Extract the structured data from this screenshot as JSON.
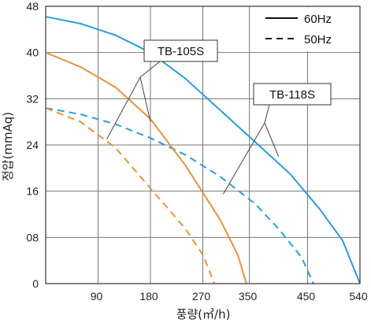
{
  "chart_data": {
    "type": "line",
    "xlabel": "풍량(㎥/h)",
    "ylabel": "정압(mmAq)",
    "xlim": [
      0,
      540
    ],
    "ylim": [
      0,
      48
    ],
    "x_ticks": [
      "90",
      "180",
      "270",
      "350",
      "450",
      "540"
    ],
    "x_tick_values": [
      90,
      180,
      270,
      350,
      450,
      540
    ],
    "y_ticks": [
      "0",
      "08",
      "16",
      "24",
      "32",
      "40",
      "48"
    ],
    "y_tick_values": [
      0,
      8,
      16,
      24,
      32,
      40,
      48
    ],
    "grid": true,
    "legend": {
      "placement": "top-right",
      "entries": [
        {
          "label": "60Hz",
          "style": "solid"
        },
        {
          "label": "50Hz",
          "style": "dashed"
        }
      ]
    },
    "callouts": [
      {
        "label": "TB-105S",
        "targets": [
          [
            180,
            28
          ],
          [
            105,
            25
          ]
        ]
      },
      {
        "label": "TB-118S",
        "targets": [
          [
            400,
            22
          ],
          [
            305,
            15.5
          ]
        ]
      }
    ],
    "series": [
      {
        "model": "TB-118S",
        "freq": "60Hz",
        "color": "#2a9fd6",
        "dash": false,
        "x": [
          0,
          60,
          120,
          180,
          240,
          300,
          360,
          420,
          470,
          510,
          540
        ],
        "y": [
          46.2,
          45,
          43,
          40,
          35.5,
          30,
          24.5,
          19,
          13,
          7.5,
          0
        ]
      },
      {
        "model": "TB-118S",
        "freq": "50Hz",
        "color": "#2a9fd6",
        "dash": true,
        "x": [
          0,
          60,
          120,
          180,
          240,
          300,
          360,
          400,
          440,
          460
        ],
        "y": [
          30.4,
          29.3,
          27.6,
          25.2,
          22.3,
          18.5,
          13.8,
          9.5,
          4.5,
          0
        ]
      },
      {
        "model": "TB-105S",
        "freq": "60Hz",
        "color": "#e8923a",
        "dash": false,
        "x": [
          0,
          60,
          120,
          180,
          240,
          300,
          330,
          345
        ],
        "y": [
          40,
          37.5,
          34,
          28.5,
          20.5,
          11,
          5,
          0
        ]
      },
      {
        "model": "TB-105S",
        "freq": "50Hz",
        "color": "#e8923a",
        "dash": true,
        "x": [
          0,
          60,
          120,
          180,
          240,
          270,
          290
        ],
        "y": [
          30.4,
          28,
          23.5,
          16.5,
          9.5,
          5,
          0
        ]
      }
    ]
  }
}
